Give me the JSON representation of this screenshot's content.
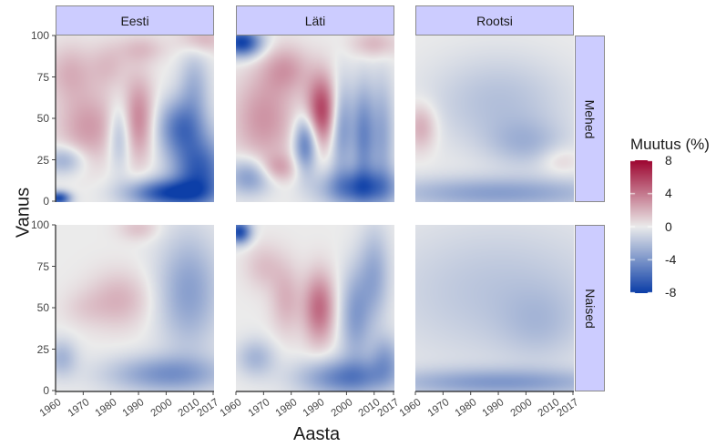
{
  "chart_data": {
    "type": "heatmap",
    "xlabel": "Aasta",
    "ylabel": "Vanus",
    "x_ticks": [
      "1960",
      "1970",
      "1980",
      "1990",
      "2000",
      "2010",
      "2017"
    ],
    "x_range": [
      1960,
      2017
    ],
    "y_ticks": [
      "0",
      "25",
      "50",
      "75",
      "100"
    ],
    "y_range": [
      0,
      100
    ],
    "columns": [
      "Eesti",
      "Läti",
      "Rootsi"
    ],
    "rows": [
      "Mehed",
      "Naised"
    ],
    "legend": {
      "title": "Muutus (%)",
      "position": "right",
      "ticks": [
        "8",
        "4",
        "0",
        "-4",
        "-8"
      ],
      "range": [
        -8,
        8
      ],
      "colors": {
        "high": "#9e0631",
        "mid": "#ebebeb",
        "low": "#0d3fa8"
      }
    },
    "panels": [
      {
        "column": "Eesti",
        "row": "Mehed",
        "blobs": [
          {
            "x": 1972,
            "y": 45,
            "rx": 8,
            "ry": 15,
            "v": 2.8
          },
          {
            "x": 1965,
            "y": 78,
            "rx": 6,
            "ry": 12,
            "v": 2.0
          },
          {
            "x": 1979,
            "y": 82,
            "rx": 5,
            "ry": 10,
            "v": 1.5
          },
          {
            "x": 1990,
            "y": 50,
            "rx": 4,
            "ry": 18,
            "v": 3.5
          },
          {
            "x": 1991,
            "y": 92,
            "rx": 6,
            "ry": 6,
            "v": 1.5
          },
          {
            "x": 1983,
            "y": 40,
            "rx": 3,
            "ry": 14,
            "v": -3.0
          },
          {
            "x": 2005,
            "y": 45,
            "rx": 6,
            "ry": 12,
            "v": -5.0
          },
          {
            "x": 2012,
            "y": 18,
            "rx": 7,
            "ry": 15,
            "v": -6.5
          },
          {
            "x": 2000,
            "y": 5,
            "rx": 10,
            "ry": 6,
            "v": -7.0
          },
          {
            "x": 1963,
            "y": 25,
            "rx": 5,
            "ry": 6,
            "v": -3.0
          },
          {
            "x": 2010,
            "y": 70,
            "rx": 4,
            "ry": 15,
            "v": -2.5
          },
          {
            "x": 2013,
            "y": 98,
            "rx": 6,
            "ry": 6,
            "v": 2.0
          },
          {
            "x": 1961,
            "y": 2,
            "rx": 3,
            "ry": 3,
            "v": -7.5
          }
        ]
      },
      {
        "column": "Läti",
        "row": "Mehed",
        "blobs": [
          {
            "x": 1962,
            "y": 96,
            "rx": 5,
            "ry": 6,
            "v": -8.0
          },
          {
            "x": 1970,
            "y": 50,
            "rx": 8,
            "ry": 20,
            "v": 3.0
          },
          {
            "x": 1978,
            "y": 80,
            "rx": 6,
            "ry": 10,
            "v": 2.5
          },
          {
            "x": 1991,
            "y": 55,
            "rx": 4,
            "ry": 15,
            "v": 6.0
          },
          {
            "x": 1985,
            "y": 35,
            "rx": 3,
            "ry": 12,
            "v": -5.5
          },
          {
            "x": 1998,
            "y": 45,
            "rx": 3,
            "ry": 20,
            "v": -4.0
          },
          {
            "x": 2006,
            "y": 40,
            "rx": 3,
            "ry": 22,
            "v": -4.5
          },
          {
            "x": 2013,
            "y": 40,
            "rx": 3,
            "ry": 25,
            "v": -3.0
          },
          {
            "x": 2005,
            "y": 8,
            "rx": 10,
            "ry": 8,
            "v": -6.0
          },
          {
            "x": 1965,
            "y": 15,
            "rx": 6,
            "ry": 8,
            "v": -4.0
          },
          {
            "x": 1975,
            "y": 20,
            "rx": 5,
            "ry": 6,
            "v": 2.5
          },
          {
            "x": 2010,
            "y": 95,
            "rx": 6,
            "ry": 6,
            "v": 2.0
          }
        ]
      },
      {
        "column": "Rootsi",
        "row": "Mehed",
        "blobs": [
          {
            "x": 1962,
            "y": 45,
            "rx": 4,
            "ry": 10,
            "v": 2.5
          },
          {
            "x": 1990,
            "y": 60,
            "rx": 18,
            "ry": 20,
            "v": -2.0
          },
          {
            "x": 1990,
            "y": 5,
            "rx": 30,
            "ry": 7,
            "v": -3.5
          },
          {
            "x": 2012,
            "y": 25,
            "rx": 5,
            "ry": 6,
            "v": 1.2
          },
          {
            "x": 2000,
            "y": 35,
            "rx": 10,
            "ry": 10,
            "v": -2.0
          }
        ]
      },
      {
        "column": "Eesti",
        "row": "Naised",
        "blobs": [
          {
            "x": 1983,
            "y": 55,
            "rx": 8,
            "ry": 12,
            "v": 2.0
          },
          {
            "x": 1970,
            "y": 50,
            "rx": 6,
            "ry": 8,
            "v": 0.8
          },
          {
            "x": 2008,
            "y": 60,
            "rx": 8,
            "ry": 25,
            "v": -3.5
          },
          {
            "x": 2000,
            "y": 10,
            "rx": 15,
            "ry": 8,
            "v": -4.0
          },
          {
            "x": 1962,
            "y": 20,
            "rx": 4,
            "ry": 8,
            "v": -2.5
          },
          {
            "x": 1990,
            "y": 98,
            "rx": 5,
            "ry": 5,
            "v": 1.5
          }
        ]
      },
      {
        "column": "Läti",
        "row": "Naised",
        "blobs": [
          {
            "x": 1961,
            "y": 96,
            "rx": 3,
            "ry": 5,
            "v": -7.5
          },
          {
            "x": 1990,
            "y": 50,
            "rx": 4,
            "ry": 15,
            "v": 4.5
          },
          {
            "x": 1978,
            "y": 55,
            "rx": 4,
            "ry": 15,
            "v": 2.0
          },
          {
            "x": 1970,
            "y": 75,
            "rx": 5,
            "ry": 10,
            "v": 1.5
          },
          {
            "x": 2003,
            "y": 45,
            "rx": 4,
            "ry": 20,
            "v": -3.5
          },
          {
            "x": 2010,
            "y": 70,
            "rx": 4,
            "ry": 20,
            "v": -3.0
          },
          {
            "x": 2000,
            "y": 8,
            "rx": 12,
            "ry": 8,
            "v": -5.0
          },
          {
            "x": 1967,
            "y": 20,
            "rx": 5,
            "ry": 8,
            "v": -2.5
          },
          {
            "x": 2014,
            "y": 20,
            "rx": 4,
            "ry": 10,
            "v": -3.0
          }
        ]
      },
      {
        "column": "Rootsi",
        "row": "Naised",
        "blobs": [
          {
            "x": 1990,
            "y": 60,
            "rx": 30,
            "ry": 30,
            "v": -1.8
          },
          {
            "x": 1990,
            "y": 5,
            "rx": 30,
            "ry": 6,
            "v": -3.5
          },
          {
            "x": 2005,
            "y": 40,
            "rx": 10,
            "ry": 15,
            "v": -1.2
          }
        ]
      }
    ]
  }
}
